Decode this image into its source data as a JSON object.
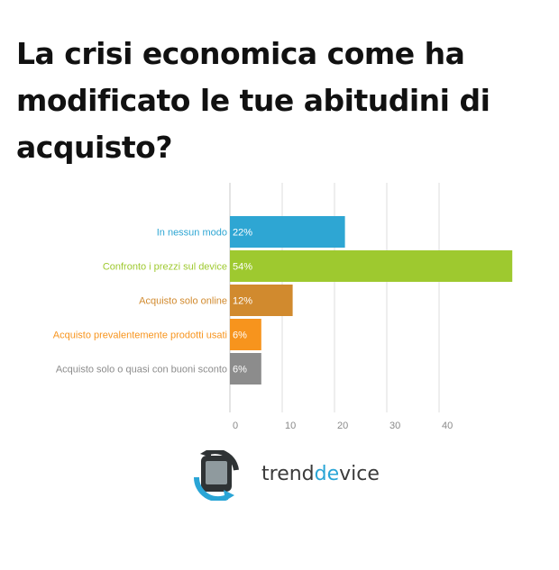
{
  "title": "La crisi economica come ha modificato le tue abitudini di acquisto?",
  "brand": {
    "prefix": "trend",
    "accent": "de",
    "suffix": "vice",
    "logo_icon": "trendevice-logo-icon"
  },
  "chart_data": {
    "type": "bar",
    "orientation": "horizontal",
    "categories": [
      "In nessun modo",
      "Confronto i prezzi sul device",
      "Acquisto solo online",
      "Acquisto prevalentemente prodotti usati",
      "Acquisto solo o quasi con buoni sconto"
    ],
    "values": [
      22,
      54,
      12,
      6,
      6
    ],
    "value_labels": [
      "22%",
      "54%",
      "12%",
      "6%",
      "6%"
    ],
    "colors": [
      "#2ea6d3",
      "#9ec92f",
      "#d18a2e",
      "#f7941d",
      "#8c8c8c"
    ],
    "label_colors": [
      "#2ea6d3",
      "#9ec92f",
      "#d18a2e",
      "#f7941d",
      "#8c8c8c"
    ],
    "xticks": [
      "0",
      "10",
      "20",
      "30",
      "40"
    ],
    "xlim": [
      0,
      54
    ],
    "grid": true,
    "xlabel": "",
    "ylabel": ""
  }
}
